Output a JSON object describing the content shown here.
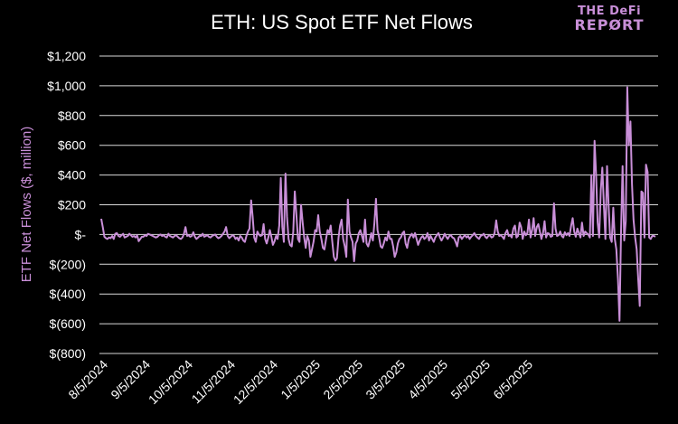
{
  "brand": {
    "line1": "THE DeFi",
    "line2": "REPØRT"
  },
  "colors": {
    "background": "#000000",
    "line": "#c98fd8",
    "grid": "#d9d9d9",
    "text": "#ffffff",
    "ylabel": "#c98fd8"
  },
  "chart_data": {
    "type": "line",
    "title": "ETH: US Spot ETF Net Flows",
    "xlabel": "",
    "ylabel": "ETF Net Flows ($, million)",
    "ylim": [
      -800,
      1200
    ],
    "yticks": [
      {
        "value": 1200,
        "label": "$1,200"
      },
      {
        "value": 1000,
        "label": "$1,000"
      },
      {
        "value": 800,
        "label": "$800"
      },
      {
        "value": 600,
        "label": "$600"
      },
      {
        "value": 400,
        "label": "$400"
      },
      {
        "value": 200,
        "label": "$200"
      },
      {
        "value": 0,
        "label": "$-"
      },
      {
        "value": -200,
        "label": "$(200)"
      },
      {
        "value": -400,
        "label": "$(400)"
      },
      {
        "value": -600,
        "label": "$(600)"
      },
      {
        "value": -800,
        "label": "$(800)"
      }
    ],
    "xticks": [
      "8/5/2024",
      "9/5/2024",
      "10/5/2024",
      "11/5/2024",
      "12/5/2024",
      "1/5/2025",
      "2/5/2025",
      "3/5/2025",
      "4/5/2025",
      "5/5/2025",
      "6/5/2025"
    ],
    "grid": true,
    "legend": "none",
    "series": [
      {
        "values": [
          106,
          50,
          -15,
          -25,
          -30,
          -20,
          -25,
          -10,
          -30,
          5,
          10,
          -10,
          -15,
          -5,
          5,
          -20,
          -15,
          -10,
          5,
          -5,
          -15,
          -10,
          -20,
          -5,
          -45,
          -30,
          -15,
          -15,
          -5,
          -10,
          5,
          0,
          -5,
          -10,
          -15,
          -20,
          -15,
          -5,
          0,
          -10,
          -5,
          -15,
          -20,
          5,
          -10,
          -15,
          -20,
          -10,
          -5,
          -15,
          -25,
          -30,
          -20,
          5,
          50,
          -10,
          -5,
          -15,
          -10,
          15,
          -15,
          -30,
          -20,
          -10,
          -10,
          5,
          -15,
          -10,
          -5,
          -15,
          -20,
          -10,
          -5,
          0,
          -15,
          -25,
          -20,
          -10,
          5,
          20,
          50,
          -10,
          -25,
          -15,
          -5,
          -10,
          -30,
          -20,
          -40,
          -10,
          -20,
          -40,
          -50,
          -10,
          20,
          40,
          230,
          120,
          -20,
          -50,
          20,
          0,
          -10,
          -5,
          70,
          -30,
          -60,
          -20,
          30,
          -15,
          -70,
          -45,
          -10,
          -30,
          60,
          380,
          50,
          -50,
          410,
          120,
          -30,
          -70,
          -80,
          20,
          290,
          140,
          -30,
          -50,
          200,
          80,
          -20,
          -90,
          -10,
          -40,
          -150,
          -100,
          -50,
          30,
          20,
          130,
          20,
          -30,
          -90,
          -100,
          -30,
          30,
          10,
          60,
          -50,
          -150,
          -175,
          -160,
          -20,
          60,
          100,
          -30,
          -80,
          -150,
          235,
          20,
          -20,
          -50,
          -180,
          -60,
          -40,
          10,
          30,
          -10,
          -50,
          100,
          -60,
          -80,
          -40,
          10,
          -40,
          80,
          240,
          30,
          -20,
          -80,
          -90,
          -60,
          -20,
          -40,
          20,
          -30,
          -30,
          -80,
          -150,
          -120,
          -60,
          -30,
          -20,
          10,
          20,
          -60,
          -90,
          -30,
          -10,
          5,
          -20,
          10,
          -30,
          -70,
          -40,
          -20,
          -10,
          -30,
          -20,
          10,
          -40,
          -10,
          -30,
          -50,
          -20,
          -5,
          10,
          -20,
          -40,
          -20,
          5,
          -15,
          -30,
          -10,
          -5,
          -20,
          -25,
          -50,
          -80,
          -20,
          -10,
          -30,
          -15,
          -5,
          -20,
          -10,
          -30,
          -15,
          -5,
          10,
          -10,
          -20,
          -30,
          -10,
          -5,
          5,
          -15,
          -25,
          -10,
          -5,
          -20,
          -15,
          10,
          95,
          20,
          -10,
          -5,
          -15,
          -30,
          10,
          30,
          -10,
          -5,
          -20,
          40,
          60,
          -20,
          -10,
          80,
          50,
          -30,
          20,
          -5,
          10,
          100,
          -20,
          30,
          110,
          -10,
          50,
          70,
          20,
          -30,
          10,
          90,
          -20,
          10,
          5,
          -15,
          -10,
          210,
          40,
          -10,
          -5,
          20,
          -10,
          -20,
          15,
          -5,
          10,
          -10,
          60,
          110,
          20,
          -15,
          40,
          10,
          -20,
          80,
          -10,
          20,
          10,
          0,
          -20,
          400,
          -10,
          630,
          400,
          80,
          -20,
          300,
          450,
          200,
          -30,
          460,
          200,
          -20,
          -50,
          180,
          -30,
          -100,
          -300,
          -580,
          20,
          460,
          -40,
          90,
          990,
          600,
          760,
          340,
          100,
          -20,
          -100,
          -300,
          -480,
          290,
          280,
          -20,
          470,
          420,
          -20,
          -30,
          -10,
          -10,
          -15
        ]
      }
    ]
  }
}
